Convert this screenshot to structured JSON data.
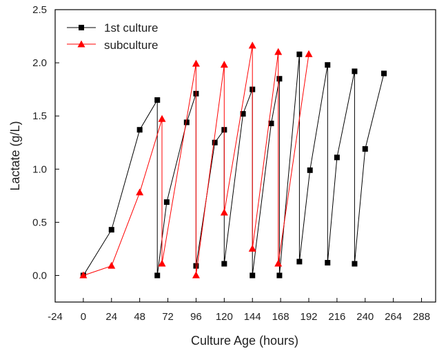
{
  "chart_data": {
    "type": "line",
    "title": "",
    "xlabel": "Culture Age (hours)",
    "ylabel": "Lactate (g/L)",
    "xlim": [
      -24,
      300
    ],
    "ylim": [
      -0.25,
      2.5
    ],
    "xticks": [
      -24,
      0,
      24,
      48,
      72,
      96,
      120,
      144,
      168,
      192,
      216,
      240,
      264,
      288
    ],
    "xtick_labels": [
      "-24",
      "0",
      "24",
      "48",
      "72",
      "96",
      "120",
      "144",
      "168",
      "192",
      "216",
      "240",
      "264",
      "288"
    ],
    "yticks": [
      0.0,
      0.5,
      1.0,
      1.5,
      2.0,
      2.5
    ],
    "ytick_labels": [
      "0.0",
      "0.5",
      "1.0",
      "1.5",
      "2.0",
      "2.5"
    ],
    "legend_position": "top-left",
    "grid": false,
    "series": [
      {
        "name": "1st culture",
        "color": "#000000",
        "marker": "square",
        "points": [
          [
            0,
            0.0
          ],
          [
            24,
            0.43
          ],
          [
            48,
            1.37
          ],
          [
            63,
            1.65
          ],
          [
            63,
            0.0
          ],
          [
            71,
            0.69
          ],
          [
            88,
            1.44
          ],
          [
            96,
            1.71
          ],
          [
            96,
            0.09
          ],
          [
            112,
            1.25
          ],
          [
            120,
            1.37
          ],
          [
            120,
            0.11
          ],
          [
            136,
            1.52
          ],
          [
            144,
            1.75
          ],
          [
            144,
            0.0
          ],
          [
            160,
            1.43
          ],
          [
            167,
            1.85
          ],
          [
            167,
            0.0
          ],
          [
            184,
            2.08
          ],
          [
            184,
            0.13
          ],
          [
            193,
            0.99
          ],
          [
            208,
            1.98
          ],
          [
            208,
            0.12
          ],
          [
            216,
            1.11
          ],
          [
            231,
            1.92
          ],
          [
            231,
            0.11
          ],
          [
            240,
            1.19
          ],
          [
            256,
            1.9
          ]
        ]
      },
      {
        "name": "subculture",
        "color": "#ff0000",
        "marker": "triangle",
        "points": [
          [
            0,
            0.0
          ],
          [
            24,
            0.09
          ],
          [
            48,
            0.78
          ],
          [
            67,
            1.47
          ],
          [
            67,
            0.11
          ],
          [
            96,
            1.99
          ],
          [
            96,
            0.0
          ],
          [
            120,
            1.98
          ],
          [
            120,
            0.59
          ],
          [
            144,
            2.16
          ],
          [
            144,
            0.25
          ],
          [
            166,
            2.1
          ],
          [
            166,
            0.11
          ],
          [
            192,
            2.08
          ]
        ]
      }
    ]
  }
}
